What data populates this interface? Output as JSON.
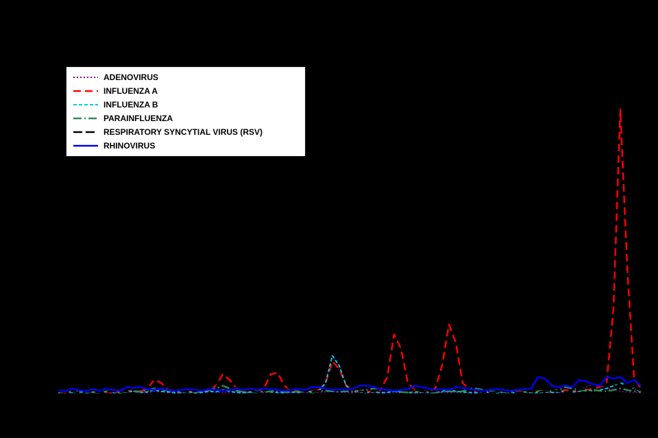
{
  "page": {
    "background_color": "#000000"
  },
  "legend": {
    "background_color": "#ffffff",
    "border_color": "#222222",
    "items": [
      {
        "label": "ADENOVIRUS",
        "color": "#800080",
        "dash": "2,3",
        "width": 2
      },
      {
        "label": "INFLUENZA A",
        "color": "#ff0000",
        "dash": "11,6",
        "width": 2.5
      },
      {
        "label": "INFLUENZA B",
        "color": "#00c8f0",
        "dash": "5,3",
        "width": 2
      },
      {
        "label": "PARAINFLUENZA",
        "color": "#2e8b57",
        "dash": "12,4,2,4",
        "width": 2.5
      },
      {
        "label": "RESPIRATORY SYNCYTIAL VIRUS (RSV)",
        "color": "#000000",
        "dash": "13,5",
        "width": 2.5
      },
      {
        "label": "RHINOVIRUS",
        "color": "#0000ee",
        "dash": "",
        "width": 2.5
      }
    ]
  },
  "chart_data": {
    "type": "line",
    "title": "",
    "xlabel": "",
    "ylabel": "",
    "grid": false,
    "axes_visible": false,
    "legend_position": "top-left",
    "background": "#000000",
    "x_points": 86,
    "ylim": [
      0,
      105
    ],
    "note_units": "relative intensity, peak influenza A = 100",
    "series": [
      {
        "name": "ADENOVIRUS",
        "color": "#800080",
        "dash": "2,3",
        "width": 2,
        "values": [
          0.5,
          0.8,
          0.5,
          1,
          0.6,
          0.5,
          0.8,
          0.5,
          0.7,
          0.5,
          0.8,
          1,
          0.6,
          0.5,
          1,
          0.8,
          0.5,
          0.6,
          0.5,
          0.8,
          0.5,
          0.7,
          1,
          0.8,
          0.6,
          0.5,
          0.8,
          0.5,
          0.6,
          0.8,
          0.5,
          1,
          0.8,
          0.5,
          0.6,
          0.5,
          0.8,
          0.6,
          0.5,
          0.8,
          1,
          0.8,
          0.6,
          0.5,
          0.8,
          0.5,
          0.6,
          0.8,
          0.5,
          0.7,
          0.5,
          0.8,
          0.6,
          0.5,
          0.8,
          0.5,
          0.6,
          0.5,
          0.8,
          0.6,
          0.5,
          0.8,
          0.5,
          0.6,
          0.8,
          0.5,
          0.7,
          0.5,
          0.8,
          0.6,
          0.5,
          0.8,
          0.5,
          0.6,
          0.8,
          1,
          1.5,
          2.5,
          3.5,
          3,
          2,
          1.5,
          1,
          0.8,
          0.6,
          0.5
        ]
      },
      {
        "name": "INFLUENZA A",
        "color": "#ff0000",
        "dash": "11,6",
        "width": 2.5,
        "values": [
          1,
          0.5,
          1,
          0.8,
          1,
          0.6,
          1,
          0.8,
          0.5,
          1,
          1,
          1.5,
          1,
          2,
          5,
          4,
          1.5,
          1,
          0.8,
          1,
          0.5,
          1,
          1.5,
          3,
          7,
          5,
          2,
          1,
          0.8,
          1,
          2,
          7,
          7.5,
          3,
          1,
          1,
          0.8,
          1,
          1.5,
          4,
          11.5,
          9,
          3,
          1.5,
          1,
          0.8,
          1,
          1.5,
          6,
          21,
          16,
          4,
          1.5,
          1,
          1,
          2,
          10,
          24.5,
          18,
          4,
          1.5,
          1,
          0.8,
          1,
          0.6,
          1,
          0.8,
          1,
          0.7,
          1,
          1.2,
          1,
          0.8,
          1,
          1.5,
          1,
          1.2,
          1.5,
          2,
          2.5,
          4,
          30,
          100,
          45,
          6,
          2
        ]
      },
      {
        "name": "INFLUENZA B",
        "color": "#00c8f0",
        "dash": "5,3",
        "width": 2,
        "values": [
          0.5,
          0.8,
          0.6,
          1,
          0.5,
          0.8,
          0.5,
          1,
          0.6,
          0.5,
          0.8,
          1,
          0.6,
          0.8,
          1.5,
          1,
          0.8,
          0.5,
          0.6,
          0.8,
          0.5,
          0.6,
          1,
          0.8,
          1.5,
          1,
          0.6,
          0.5,
          0.8,
          0.6,
          1,
          0.8,
          0.6,
          0.5,
          0.8,
          0.6,
          1,
          0.8,
          1,
          4,
          13.5,
          10,
          3,
          1,
          0.8,
          0.6,
          0.8,
          0.5,
          0.6,
          1,
          0.8,
          0.6,
          0.5,
          0.8,
          0.6,
          0.5,
          1,
          1.5,
          1,
          0.8,
          0.6,
          0.5,
          0.8,
          0.6,
          0.5,
          0.8,
          0.6,
          0.5,
          0.8,
          0.6,
          0.5,
          0.8,
          0.6,
          0.8,
          1,
          0.8,
          1,
          1.5,
          1.2,
          1.5,
          2,
          3,
          4,
          3,
          2,
          1
        ]
      },
      {
        "name": "PARAINFLUENZA",
        "color": "#2e8b57",
        "dash": "12,4,2,4",
        "width": 2.5,
        "values": [
          0.5,
          1,
          0.8,
          0.6,
          1,
          0.8,
          0.5,
          1,
          0.8,
          0.6,
          1,
          1.2,
          0.8,
          1.5,
          2,
          1.8,
          1.2,
          0.8,
          1,
          0.6,
          0.8,
          1,
          1.5,
          2,
          3,
          2,
          1.2,
          0.8,
          0.6,
          1,
          0.8,
          1,
          1.2,
          0.8,
          0.6,
          1,
          0.8,
          0.6,
          1,
          1.2,
          1,
          0.8,
          1,
          0.8,
          1.2,
          1.5,
          2,
          2,
          1.5,
          1,
          0.8,
          0.6,
          0.8,
          1,
          0.8,
          0.6,
          0.8,
          1,
          0.8,
          1,
          2,
          2,
          1.5,
          1,
          0.8,
          0.6,
          0.8,
          1,
          0.8,
          0.6,
          1,
          1.2,
          1,
          1.5,
          2.5,
          2,
          1.5,
          1.2,
          1.5,
          1.2,
          1,
          1.5,
          2,
          1.5,
          1,
          0.8
        ]
      },
      {
        "name": "RESPIRATORY SYNCYTIAL VIRUS (RSV)",
        "color": "#000000",
        "dash": "13,5",
        "width": 2.5,
        "values": [
          1,
          0.8,
          1,
          0.6,
          0.8,
          1,
          0.6,
          0.8,
          1,
          0.8,
          1,
          1.5,
          2,
          2.5,
          3,
          2.5,
          2,
          1.5,
          1,
          0.8,
          1,
          1.5,
          2,
          3,
          3.5,
          3,
          2,
          1.5,
          1,
          0.8,
          1,
          2,
          3,
          2.5,
          2,
          1.5,
          1,
          0.8,
          1,
          2,
          3.5,
          3,
          2,
          1.5,
          1,
          0.8,
          1,
          1.5,
          2.5,
          3.5,
          3,
          2,
          1.5,
          1,
          0.8,
          1,
          2,
          3,
          2.5,
          2,
          1.5,
          1,
          0.8,
          0.6,
          0.8,
          1,
          0.8,
          0.6,
          0.8,
          1,
          0.8,
          1,
          1.2,
          1,
          0.8,
          1,
          1.5,
          2,
          2.5,
          3,
          3.5,
          4,
          3.5,
          3,
          2,
          1.5
        ]
      },
      {
        "name": "RHINOVIRUS",
        "color": "#0000ee",
        "dash": "",
        "width": 2.5,
        "values": [
          1.5,
          1,
          2,
          1.5,
          1,
          1.8,
          1.2,
          2,
          1.5,
          1.2,
          2.5,
          2.2,
          2.5,
          1.8,
          1.5,
          2,
          1.5,
          1.2,
          1.5,
          1.8,
          1.5,
          1.2,
          1.8,
          1.5,
          1.2,
          1.5,
          1.8,
          1.5,
          2,
          1.5,
          2,
          1.8,
          1.5,
          1.2,
          1.5,
          1.8,
          1.5,
          2.5,
          2.5,
          2,
          1.5,
          1.8,
          1.5,
          2,
          3,
          3,
          2.5,
          1.8,
          1.5,
          1.2,
          1.5,
          1.8,
          3,
          2.5,
          2,
          1.5,
          1.8,
          1.5,
          2.5,
          2.2,
          1.8,
          1.5,
          1.2,
          1.5,
          1.8,
          1.5,
          1.2,
          1.5,
          1.8,
          2,
          6,
          5.5,
          3,
          2.5,
          3,
          2.5,
          5,
          4.5,
          3.5,
          3,
          6,
          5.5,
          6,
          4,
          5,
          3
        ]
      }
    ]
  }
}
